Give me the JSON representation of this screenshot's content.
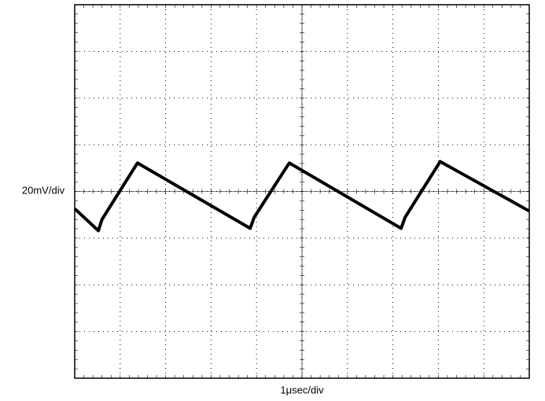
{
  "chart_data": {
    "type": "line",
    "x_label": "1μsec/div",
    "y_label": "20mV/div",
    "xlim": [
      0,
      10
    ],
    "ylim": [
      -4,
      4
    ],
    "xticks": [
      0,
      1,
      2,
      3,
      4,
      5,
      6,
      7,
      8,
      9,
      10
    ],
    "yticks": [
      -4,
      -3,
      -2,
      -1,
      0,
      1,
      2,
      3,
      4
    ],
    "grid": true,
    "series": [
      {
        "color": "#000000",
        "x": [
          0,
          0.52,
          0.6,
          1.38,
          3.86,
          3.95,
          4.72,
          7.18,
          7.27,
          8.04,
          10
        ],
        "values": [
          -0.37,
          -0.84,
          -0.6,
          0.61,
          -0.79,
          -0.55,
          0.61,
          -0.79,
          -0.55,
          0.64,
          -0.42
        ]
      }
    ]
  }
}
